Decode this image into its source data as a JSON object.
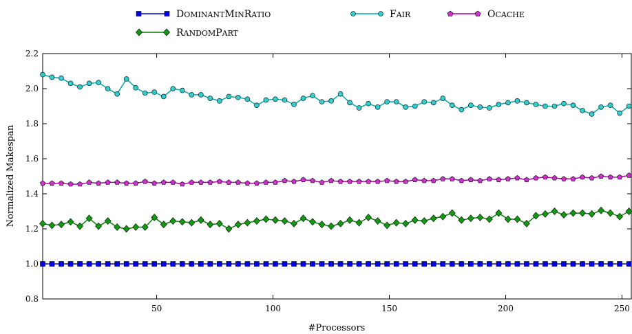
{
  "chart_data": {
    "type": "line",
    "title": "",
    "xlabel": "#Processors",
    "ylabel": "Normalized Makespan",
    "xlim": [
      1,
      254
    ],
    "ylim": [
      0.8,
      2.2
    ],
    "xticks": [
      50,
      100,
      150,
      200,
      250
    ],
    "yticks": [
      0.8,
      1.0,
      1.2,
      1.4,
      1.6,
      1.8,
      2.0,
      2.2
    ],
    "ytick_labels": [
      "0.8",
      "1.0",
      "1.2",
      "1.4",
      "1.6",
      "1.8",
      "2.0",
      "2.2"
    ],
    "grid": false,
    "legend_placement": "top-center",
    "x": [
      1,
      5,
      9,
      13,
      17,
      21,
      25,
      29,
      33,
      37,
      41,
      45,
      49,
      53,
      57,
      61,
      65,
      69,
      73,
      77,
      81,
      85,
      89,
      93,
      97,
      101,
      105,
      109,
      113,
      117,
      121,
      125,
      129,
      133,
      137,
      141,
      145,
      149,
      153,
      157,
      161,
      165,
      169,
      173,
      177,
      181,
      185,
      189,
      193,
      197,
      201,
      205,
      209,
      213,
      217,
      221,
      225,
      229,
      233,
      237,
      241,
      245,
      249,
      253
    ],
    "series": [
      {
        "name": "DominantMinRatio",
        "color": "#0000cc",
        "marker": "square",
        "values": [
          1.0,
          1.0,
          1.0,
          1.0,
          1.0,
          1.0,
          1.0,
          1.0,
          1.0,
          1.0,
          1.0,
          1.0,
          1.0,
          1.0,
          1.0,
          1.0,
          1.0,
          1.0,
          1.0,
          1.0,
          1.0,
          1.0,
          1.0,
          1.0,
          1.0,
          1.0,
          1.0,
          1.0,
          1.0,
          1.0,
          1.0,
          1.0,
          1.0,
          1.0,
          1.0,
          1.0,
          1.0,
          1.0,
          1.0,
          1.0,
          1.0,
          1.0,
          1.0,
          1.0,
          1.0,
          1.0,
          1.0,
          1.0,
          1.0,
          1.0,
          1.0,
          1.0,
          1.0,
          1.0,
          1.0,
          1.0,
          1.0,
          1.0,
          1.0,
          1.0,
          1.0,
          1.0,
          1.0,
          1.0
        ]
      },
      {
        "name": "Fair",
        "color": "#00aaaa",
        "marker": "circle",
        "values": [
          2.08,
          2.065,
          2.06,
          2.03,
          2.01,
          2.03,
          2.035,
          2.0,
          1.97,
          2.055,
          2.005,
          1.975,
          1.98,
          1.955,
          2.0,
          1.99,
          1.965,
          1.965,
          1.945,
          1.93,
          1.955,
          1.95,
          1.94,
          1.905,
          1.935,
          1.94,
          1.935,
          1.91,
          1.945,
          1.96,
          1.925,
          1.93,
          1.97,
          1.92,
          1.89,
          1.915,
          1.895,
          1.925,
          1.925,
          1.895,
          1.9,
          1.925,
          1.92,
          1.945,
          1.905,
          1.88,
          1.905,
          1.895,
          1.89,
          1.91,
          1.92,
          1.93,
          1.92,
          1.91,
          1.9,
          1.9,
          1.915,
          1.905,
          1.875,
          1.855,
          1.895,
          1.905,
          1.86,
          1.9
        ]
      },
      {
        "name": "Ocache",
        "color": "#aa00aa",
        "marker": "pentagon",
        "values": [
          1.46,
          1.46,
          1.46,
          1.455,
          1.455,
          1.465,
          1.46,
          1.465,
          1.465,
          1.46,
          1.46,
          1.47,
          1.46,
          1.465,
          1.465,
          1.455,
          1.465,
          1.465,
          1.465,
          1.47,
          1.465,
          1.465,
          1.46,
          1.46,
          1.465,
          1.465,
          1.475,
          1.47,
          1.48,
          1.475,
          1.465,
          1.475,
          1.47,
          1.47,
          1.47,
          1.47,
          1.47,
          1.475,
          1.47,
          1.47,
          1.48,
          1.475,
          1.475,
          1.485,
          1.485,
          1.475,
          1.48,
          1.475,
          1.485,
          1.48,
          1.485,
          1.49,
          1.48,
          1.49,
          1.495,
          1.49,
          1.485,
          1.485,
          1.495,
          1.49,
          1.5,
          1.495,
          1.495,
          1.505
        ]
      },
      {
        "name": "RandomPart",
        "color": "#008000",
        "marker": "diamond",
        "values": [
          1.23,
          1.22,
          1.225,
          1.24,
          1.215,
          1.26,
          1.215,
          1.245,
          1.21,
          1.2,
          1.21,
          1.21,
          1.265,
          1.225,
          1.245,
          1.24,
          1.235,
          1.25,
          1.225,
          1.23,
          1.2,
          1.225,
          1.235,
          1.245,
          1.255,
          1.25,
          1.245,
          1.23,
          1.26,
          1.24,
          1.225,
          1.215,
          1.23,
          1.25,
          1.235,
          1.265,
          1.245,
          1.22,
          1.235,
          1.23,
          1.25,
          1.245,
          1.26,
          1.27,
          1.29,
          1.25,
          1.26,
          1.265,
          1.255,
          1.29,
          1.255,
          1.255,
          1.23,
          1.275,
          1.285,
          1.3,
          1.28,
          1.29,
          1.29,
          1.285,
          1.305,
          1.29,
          1.27,
          1.3
        ]
      }
    ]
  },
  "legend": {
    "items": [
      {
        "name": "DominantMinRatio",
        "first": "D",
        "rest": "OMINANT",
        "first2": "M",
        "rest2": "IN",
        "first3": "R",
        "rest3": "ATIO"
      },
      {
        "name": "Fair",
        "first": "F",
        "rest": "AIR"
      },
      {
        "name": "Ocache",
        "first": "O",
        "rest": "CACHE"
      },
      {
        "name": "RandomPart",
        "first": "R",
        "rest": "ANDOM",
        "first2": "P",
        "rest2": "ART"
      }
    ]
  }
}
